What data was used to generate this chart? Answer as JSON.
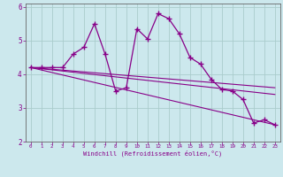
{
  "xlabel": "Windchill (Refroidissement éolien,°C)",
  "background_color": "#cce8ed",
  "line_color": "#880088",
  "grid_color": "#aacccc",
  "xlim": [
    -0.5,
    23.5
  ],
  "ylim": [
    2,
    6.1
  ],
  "yticks": [
    2,
    3,
    4,
    5,
    6
  ],
  "xticks": [
    0,
    1,
    2,
    3,
    4,
    5,
    6,
    7,
    8,
    9,
    10,
    11,
    12,
    13,
    14,
    15,
    16,
    17,
    18,
    19,
    20,
    21,
    22,
    23
  ],
  "main_x": [
    0,
    1,
    2,
    3,
    4,
    5,
    6,
    7,
    8,
    9,
    10,
    11,
    12,
    13,
    14,
    15,
    16,
    17,
    18,
    19,
    20,
    21,
    22,
    23
  ],
  "main_y": [
    4.2,
    4.2,
    4.2,
    4.2,
    4.6,
    4.8,
    5.5,
    4.6,
    3.5,
    3.6,
    5.35,
    5.05,
    5.8,
    5.65,
    5.2,
    4.5,
    4.3,
    3.85,
    3.55,
    3.5,
    3.25,
    2.55,
    2.65,
    2.5
  ],
  "trend1_x": [
    0,
    23
  ],
  "trend1_y": [
    4.2,
    2.5
  ],
  "trend2_x": [
    0,
    23
  ],
  "trend2_y": [
    4.2,
    3.4
  ],
  "trend3_x": [
    0,
    23
  ],
  "trend3_y": [
    4.2,
    3.6
  ]
}
